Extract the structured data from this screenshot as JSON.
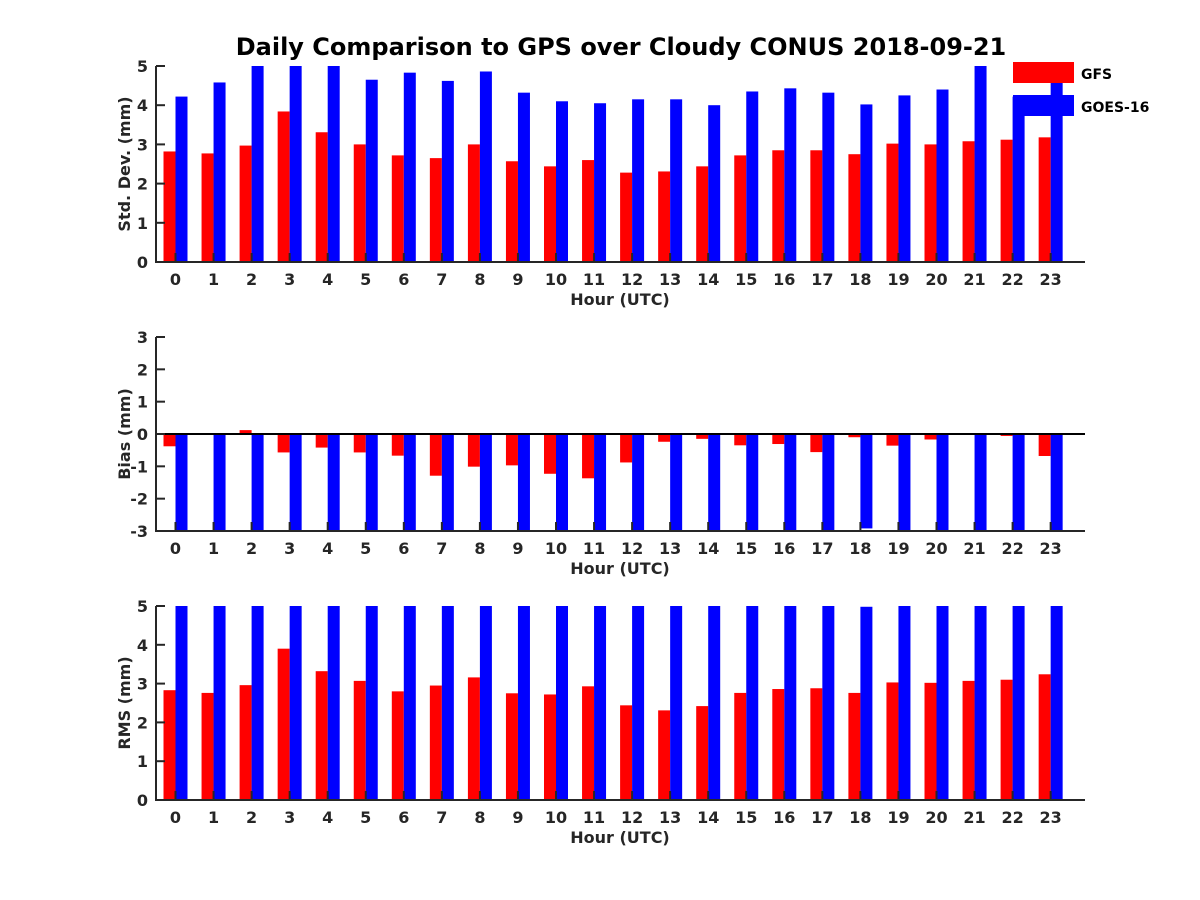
{
  "title": "Daily Comparison to GPS over Cloudy CONUS 2018-09-21",
  "colors": {
    "GFS": "#ff0000",
    "GOES-16": "#0000ff"
  },
  "legend": [
    "GFS",
    "GOES-16"
  ],
  "chart_data": [
    {
      "type": "bar",
      "ylabel": "Std. Dev. (mm)",
      "xlabel": "Hour (UTC)",
      "ylim": [
        0,
        5
      ],
      "yticks": [
        0,
        1,
        2,
        3,
        4,
        5
      ],
      "categories": [
        "0",
        "1",
        "2",
        "3",
        "4",
        "5",
        "6",
        "7",
        "8",
        "9",
        "10",
        "11",
        "12",
        "13",
        "14",
        "15",
        "16",
        "17",
        "18",
        "19",
        "20",
        "21",
        "22",
        "23"
      ],
      "series": [
        {
          "name": "GFS",
          "values": [
            2.82,
            2.77,
            2.97,
            3.84,
            3.31,
            3.0,
            2.72,
            2.65,
            3.0,
            2.57,
            2.44,
            2.6,
            2.28,
            2.31,
            2.44,
            2.72,
            2.85,
            2.85,
            2.75,
            3.02,
            3.0,
            3.08,
            3.12,
            3.18
          ]
        },
        {
          "name": "GOES-16",
          "values": [
            4.22,
            4.58,
            5.0,
            5.0,
            5.0,
            4.65,
            4.83,
            4.62,
            4.86,
            4.32,
            4.1,
            4.05,
            4.15,
            4.15,
            4.0,
            4.35,
            4.43,
            4.32,
            4.02,
            4.25,
            4.4,
            5.0,
            4.22,
            4.7
          ]
        }
      ]
    },
    {
      "type": "bar",
      "ylabel": "Bias (mm)",
      "xlabel": "Hour (UTC)",
      "ylim": [
        -3,
        3
      ],
      "yticks": [
        -3,
        -2,
        -1,
        0,
        1,
        2,
        3
      ],
      "categories": [
        "0",
        "1",
        "2",
        "3",
        "4",
        "5",
        "6",
        "7",
        "8",
        "9",
        "10",
        "11",
        "12",
        "13",
        "14",
        "15",
        "16",
        "17",
        "18",
        "19",
        "20",
        "21",
        "22",
        "23"
      ],
      "series": [
        {
          "name": "GFS",
          "values": [
            -0.38,
            -0.02,
            0.12,
            -0.57,
            -0.42,
            -0.57,
            -0.67,
            -1.29,
            -1.01,
            -0.97,
            -1.23,
            -1.37,
            -0.88,
            -0.24,
            -0.15,
            -0.35,
            -0.31,
            -0.56,
            -0.1,
            -0.36,
            -0.17,
            -0.02,
            -0.06,
            -0.68
          ]
        },
        {
          "name": "GOES-16",
          "values": [
            -3.0,
            -3.0,
            -3.0,
            -3.0,
            -3.0,
            -3.0,
            -3.0,
            -3.0,
            -3.0,
            -3.0,
            -3.0,
            -3.0,
            -3.0,
            -3.0,
            -3.0,
            -3.0,
            -3.0,
            -3.0,
            -2.92,
            -3.0,
            -3.0,
            -3.0,
            -3.0,
            -3.0
          ]
        }
      ]
    },
    {
      "type": "bar",
      "ylabel": "RMS (mm)",
      "xlabel": "Hour (UTC)",
      "ylim": [
        0,
        5
      ],
      "yticks": [
        0,
        1,
        2,
        3,
        4,
        5
      ],
      "categories": [
        "0",
        "1",
        "2",
        "3",
        "4",
        "5",
        "6",
        "7",
        "8",
        "9",
        "10",
        "11",
        "12",
        "13",
        "14",
        "15",
        "16",
        "17",
        "18",
        "19",
        "20",
        "21",
        "22",
        "23"
      ],
      "series": [
        {
          "name": "GFS",
          "values": [
            2.83,
            2.76,
            2.96,
            3.9,
            3.32,
            3.07,
            2.8,
            2.95,
            3.16,
            2.75,
            2.72,
            2.93,
            2.44,
            2.31,
            2.42,
            2.76,
            2.86,
            2.88,
            2.76,
            3.03,
            3.02,
            3.07,
            3.1,
            3.24
          ]
        },
        {
          "name": "GOES-16",
          "values": [
            5.0,
            5.0,
            5.0,
            5.0,
            5.0,
            5.0,
            5.0,
            5.0,
            5.0,
            5.0,
            5.0,
            5.0,
            5.0,
            5.0,
            5.0,
            5.0,
            5.0,
            5.0,
            4.98,
            5.0,
            5.0,
            5.0,
            5.0,
            5.0
          ]
        }
      ]
    }
  ]
}
